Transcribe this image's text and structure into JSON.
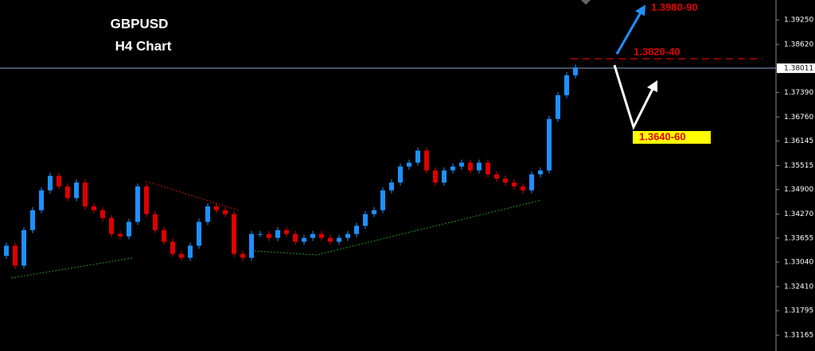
{
  "chart_data": {
    "type": "candlestick",
    "title": "GBPUSD",
    "subtitle": "H4 Chart",
    "annotations": [
      "1.3980-90",
      "1.3820-40",
      "1.3640-60"
    ],
    "up_color": "#1e90ff",
    "down_color": "#e00000",
    "ylim": [
      1.3076,
      1.3976
    ],
    "yticks": [
      {
        "value": 1.3925,
        "label": "1.39250"
      },
      {
        "value": 1.3862,
        "label": "1.38620"
      },
      {
        "value": 1.3739,
        "label": "1.37390"
      },
      {
        "value": 1.3676,
        "label": "1.36760"
      },
      {
        "value": 1.36145,
        "label": "1.36145"
      },
      {
        "value": 1.35515,
        "label": "1.35515"
      },
      {
        "value": 1.349,
        "label": "1.34900"
      },
      {
        "value": 1.3427,
        "label": "1.34270"
      },
      {
        "value": 1.33655,
        "label": "1.33655"
      },
      {
        "value": 1.3304,
        "label": "1.33040"
      },
      {
        "value": 1.3241,
        "label": "1.32410"
      },
      {
        "value": 1.31795,
        "label": "1.31795"
      },
      {
        "value": 1.31165,
        "label": "1.31165"
      }
    ],
    "current_price": {
      "value": 1.38011,
      "label": "1.38011"
    },
    "open": [
      1.332,
      1.3346,
      1.3295,
      1.3386,
      1.3437,
      1.3488,
      1.3525,
      1.3498,
      1.3468,
      1.3508,
      1.3447,
      1.3437,
      1.3417,
      1.3376,
      1.337,
      1.3407,
      1.3498,
      1.3427,
      1.3386,
      1.3356,
      1.3325,
      1.3315,
      1.3346,
      1.3407,
      1.3447,
      1.3437,
      1.3427,
      1.3325,
      1.3315,
      1.3376,
      1.3376,
      1.3366,
      1.3386,
      1.3376,
      1.3356,
      1.3366,
      1.3376,
      1.3366,
      1.3356,
      1.3366,
      1.3376,
      1.3397,
      1.3427,
      1.3437,
      1.3488,
      1.3508,
      1.3549,
      1.3559,
      1.359,
      1.3539,
      1.3508,
      1.3539,
      1.3549,
      1.3559,
      1.3539,
      1.3559,
      1.3529,
      1.3518,
      1.3508,
      1.3498,
      1.3488,
      1.3529,
      1.3539,
      1.3671,
      1.3732,
      1.3783
    ],
    "high": [
      1.3354,
      1.3354,
      1.3394,
      1.3445,
      1.3496,
      1.3533,
      1.3533,
      1.3506,
      1.3516,
      1.3516,
      1.3455,
      1.3445,
      1.3425,
      1.3384,
      1.3415,
      1.3506,
      1.3506,
      1.3435,
      1.3394,
      1.3364,
      1.3333,
      1.3354,
      1.3415,
      1.3455,
      1.3455,
      1.3445,
      1.3435,
      1.3333,
      1.3384,
      1.3384,
      1.3384,
      1.3394,
      1.3394,
      1.3384,
      1.3374,
      1.3384,
      1.3384,
      1.3374,
      1.3374,
      1.3384,
      1.3405,
      1.3435,
      1.3445,
      1.3496,
      1.3516,
      1.3557,
      1.3567,
      1.3598,
      1.3598,
      1.3547,
      1.3547,
      1.3557,
      1.3567,
      1.3567,
      1.3567,
      1.3567,
      1.3537,
      1.3526,
      1.3516,
      1.3506,
      1.3537,
      1.3547,
      1.3679,
      1.374,
      1.3791,
      1.3811
    ],
    "low": [
      1.3312,
      1.3287,
      1.3287,
      1.3378,
      1.3429,
      1.348,
      1.349,
      1.346,
      1.346,
      1.3439,
      1.3429,
      1.3409,
      1.3368,
      1.3362,
      1.3362,
      1.3399,
      1.3419,
      1.3378,
      1.3348,
      1.3317,
      1.3307,
      1.3307,
      1.3338,
      1.3399,
      1.3429,
      1.3419,
      1.3317,
      1.3307,
      1.3307,
      1.3368,
      1.3358,
      1.3358,
      1.3368,
      1.3348,
      1.3348,
      1.3358,
      1.3358,
      1.3348,
      1.3348,
      1.3358,
      1.3368,
      1.3389,
      1.3419,
      1.3429,
      1.348,
      1.35,
      1.3541,
      1.3551,
      1.3531,
      1.35,
      1.35,
      1.3531,
      1.3541,
      1.3531,
      1.3531,
      1.3521,
      1.351,
      1.35,
      1.349,
      1.348,
      1.348,
      1.3521,
      1.3531,
      1.3663,
      1.3724,
      1.3775
    ],
    "close": [
      1.3346,
      1.3295,
      1.3386,
      1.3437,
      1.3488,
      1.3525,
      1.3498,
      1.3468,
      1.3508,
      1.3447,
      1.3437,
      1.3417,
      1.3376,
      1.337,
      1.3407,
      1.3498,
      1.3427,
      1.3386,
      1.3356,
      1.3325,
      1.3315,
      1.3346,
      1.3407,
      1.3447,
      1.3437,
      1.3427,
      1.3325,
      1.3315,
      1.3376,
      1.3376,
      1.3366,
      1.3386,
      1.3376,
      1.3356,
      1.3366,
      1.3376,
      1.3366,
      1.3356,
      1.3366,
      1.3376,
      1.3397,
      1.3427,
      1.3437,
      1.3488,
      1.3508,
      1.3549,
      1.3559,
      1.359,
      1.3539,
      1.3508,
      1.3539,
      1.3549,
      1.3559,
      1.3539,
      1.3559,
      1.3529,
      1.3518,
      1.3508,
      1.3498,
      1.3488,
      1.3529,
      1.3539,
      1.3671,
      1.3732,
      1.3783,
      1.3803
    ]
  }
}
